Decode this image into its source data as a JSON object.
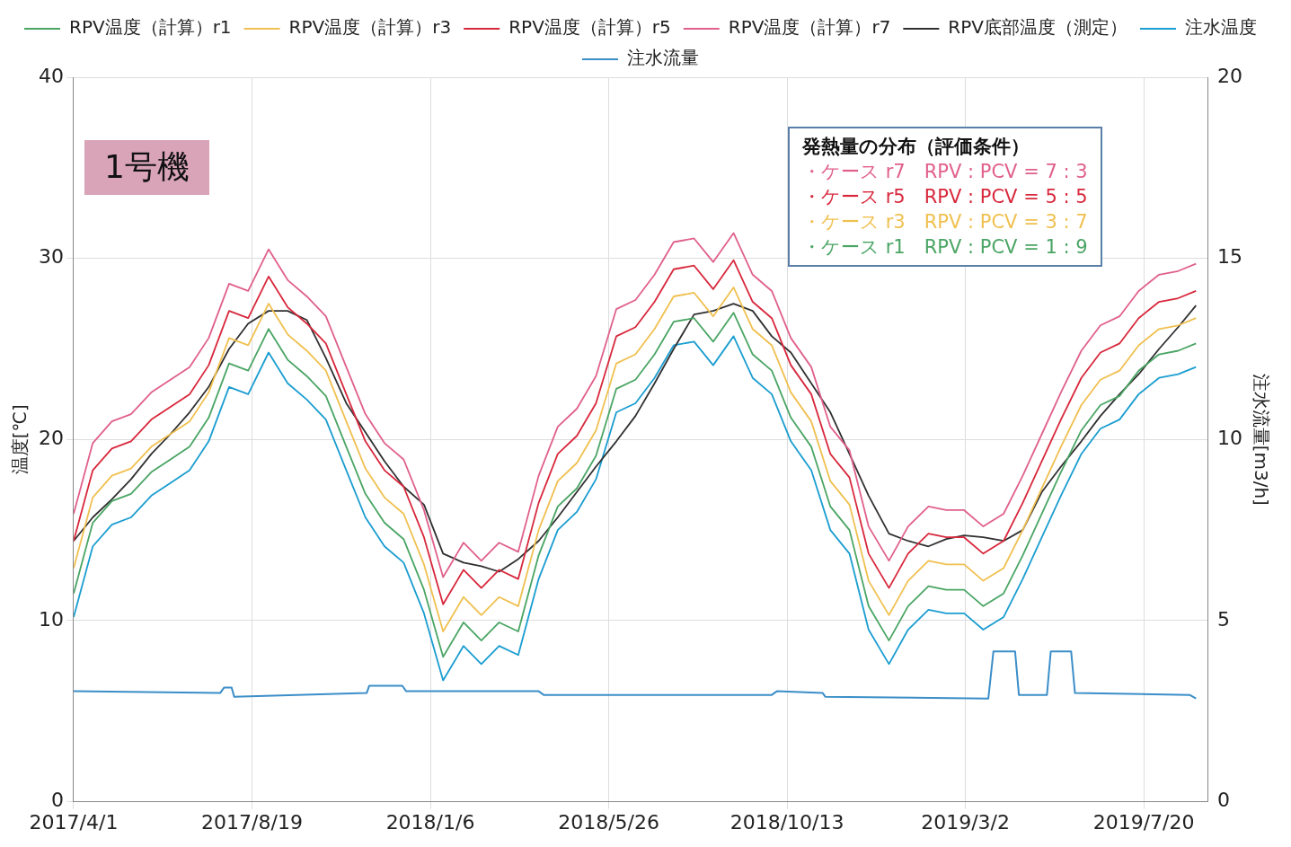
{
  "chart_data": {
    "type": "line",
    "ylabel": "温度[℃]",
    "y2label": "注水流量[m3/h]",
    "annotations": [
      "1号機",
      "発熱量の分布（評価条件）",
      "・ケース r7　RPV : PCV = 7 : 3",
      "・ケース r5　RPV : PCV = 5 : 5",
      "・ケース r3　RPV : PCV = 3 : 7",
      "・ケース r1　RPV : PCV = 1 : 9"
    ],
    "x": [
      "2017-04-01",
      "2017-04-16",
      "2017-05-01",
      "2017-05-16",
      "2017-06-01",
      "2017-06-16",
      "2017-07-01",
      "2017-07-16",
      "2017-08-01",
      "2017-08-16",
      "2017-09-01",
      "2017-09-16",
      "2017-10-01",
      "2017-10-16",
      "2017-11-01",
      "2017-11-16",
      "2017-12-01",
      "2017-12-16",
      "2018-01-01",
      "2018-01-16",
      "2018-02-01",
      "2018-02-15",
      "2018-03-01",
      "2018-03-16",
      "2018-04-01",
      "2018-04-16",
      "2018-05-01",
      "2018-05-16",
      "2018-06-01",
      "2018-06-16",
      "2018-07-01",
      "2018-07-16",
      "2018-08-01",
      "2018-08-16",
      "2018-09-01",
      "2018-09-16",
      "2018-10-01",
      "2018-10-16",
      "2018-11-01",
      "2018-11-16",
      "2018-12-01",
      "2018-12-16",
      "2019-01-01",
      "2019-01-16",
      "2019-02-01",
      "2019-02-15",
      "2019-03-01",
      "2019-03-16",
      "2019-04-01",
      "2019-04-16",
      "2019-05-01",
      "2019-05-16",
      "2019-06-01",
      "2019-06-16",
      "2019-07-01",
      "2019-07-16",
      "2019-08-01",
      "2019-08-16",
      "2019-08-30"
    ],
    "series": [
      {
        "name": "RPV温度（計算）r1",
        "color": "#4aa564",
        "values": [
          11.5,
          15.4,
          16.6,
          17.0,
          18.2,
          18.9,
          19.6,
          21.2,
          24.2,
          23.8,
          26.1,
          24.4,
          23.5,
          22.4,
          19.6,
          17.0,
          15.4,
          14.5,
          11.7,
          8.0,
          9.9,
          8.9,
          9.9,
          9.4,
          13.6,
          16.3,
          17.3,
          19.1,
          22.8,
          23.3,
          24.7,
          26.5,
          26.7,
          25.4,
          27.0,
          24.7,
          23.8,
          21.2,
          19.6,
          16.3,
          15.0,
          10.8,
          8.9,
          10.8,
          11.9,
          11.7,
          11.7,
          10.8,
          11.5,
          13.6,
          15.9,
          18.2,
          20.5,
          21.9,
          22.4,
          23.8,
          24.7,
          24.9,
          25.3
        ]
      },
      {
        "name": "RPV温度（計算）r3",
        "color": "#f0c050",
        "values": [
          12.9,
          16.8,
          18.0,
          18.4,
          19.6,
          20.3,
          21.0,
          22.6,
          25.6,
          25.2,
          27.5,
          25.8,
          24.9,
          23.8,
          21.0,
          18.4,
          16.8,
          15.9,
          13.1,
          9.4,
          11.3,
          10.3,
          11.3,
          10.8,
          15.0,
          17.7,
          18.7,
          20.5,
          24.2,
          24.7,
          26.1,
          27.9,
          28.1,
          26.8,
          28.4,
          26.1,
          25.2,
          22.6,
          21.0,
          17.7,
          16.4,
          12.2,
          10.3,
          12.2,
          13.3,
          13.1,
          13.1,
          12.2,
          12.9,
          15.0,
          17.3,
          19.6,
          21.9,
          23.3,
          23.8,
          25.2,
          26.1,
          26.3,
          26.7
        ]
      },
      {
        "name": "RPV温度（計算）r5",
        "color": "#d8283c",
        "values": [
          14.4,
          18.3,
          19.5,
          19.9,
          21.1,
          21.8,
          22.5,
          24.1,
          27.1,
          26.7,
          29.0,
          27.3,
          26.4,
          25.3,
          22.5,
          19.9,
          18.3,
          17.4,
          14.6,
          10.9,
          12.8,
          11.8,
          12.8,
          12.3,
          16.5,
          19.2,
          20.2,
          22.0,
          25.7,
          26.2,
          27.6,
          29.4,
          29.6,
          28.3,
          29.9,
          27.6,
          26.7,
          24.1,
          22.5,
          19.2,
          17.9,
          13.7,
          11.8,
          13.7,
          14.8,
          14.6,
          14.6,
          13.7,
          14.4,
          16.5,
          18.8,
          21.1,
          23.4,
          24.8,
          25.3,
          26.7,
          27.6,
          27.8,
          28.2
        ]
      },
      {
        "name": "RPV温度（計算）r7",
        "color": "#e0608a",
        "values": [
          15.9,
          19.8,
          21.0,
          21.4,
          22.6,
          23.3,
          24.0,
          25.6,
          28.6,
          28.2,
          30.5,
          28.8,
          27.9,
          26.8,
          24.0,
          21.4,
          19.8,
          18.9,
          16.1,
          12.4,
          14.3,
          13.3,
          14.3,
          13.8,
          18.0,
          20.7,
          21.7,
          23.5,
          27.2,
          27.7,
          29.1,
          30.9,
          31.1,
          29.8,
          31.4,
          29.1,
          28.2,
          25.6,
          24.0,
          20.7,
          19.4,
          15.2,
          13.3,
          15.2,
          16.3,
          16.1,
          16.1,
          15.2,
          15.9,
          18.0,
          20.3,
          22.6,
          24.9,
          26.3,
          26.8,
          28.2,
          29.1,
          29.3,
          29.7
        ]
      },
      {
        "name": "RPV底部温度（測定）",
        "color": "#303030",
        "values": [
          14.4,
          15.7,
          16.7,
          17.8,
          19.2,
          20.3,
          21.5,
          22.9,
          25.0,
          26.4,
          27.1,
          27.1,
          26.6,
          24.5,
          22.0,
          20.4,
          18.8,
          17.4,
          16.4,
          13.7,
          13.2,
          13.0,
          12.7,
          13.4,
          14.4,
          15.7,
          17.1,
          18.5,
          19.9,
          21.3,
          23.1,
          25.0,
          26.9,
          27.1,
          27.5,
          27.1,
          25.7,
          24.8,
          23.1,
          21.5,
          19.2,
          16.9,
          14.8,
          14.4,
          14.1,
          14.5,
          14.7,
          14.6,
          14.4,
          15.0,
          17.1,
          18.5,
          19.9,
          21.3,
          22.5,
          23.6,
          25.0,
          26.2,
          27.4
        ]
      },
      {
        "name": "注水温度",
        "color": "#1a9dd0",
        "values": [
          10.2,
          14.1,
          15.3,
          15.7,
          16.9,
          17.6,
          18.3,
          19.9,
          22.9,
          22.5,
          24.8,
          23.1,
          22.2,
          21.1,
          18.3,
          15.7,
          14.1,
          13.2,
          10.4,
          6.7,
          8.6,
          7.6,
          8.6,
          8.1,
          12.3,
          15.0,
          16.0,
          17.8,
          21.5,
          22.0,
          23.4,
          25.2,
          25.4,
          24.1,
          25.7,
          23.4,
          22.5,
          19.9,
          18.3,
          15.0,
          13.7,
          9.5,
          7.6,
          9.5,
          10.6,
          10.4,
          10.4,
          9.5,
          10.2,
          12.3,
          14.6,
          16.9,
          19.2,
          20.6,
          21.1,
          22.5,
          23.4,
          23.6,
          24.0
        ]
      },
      {
        "name": "注水流量",
        "color": "#3b8ec8",
        "axis": "y2",
        "x": [
          "2017-04-01",
          "2017-07-25",
          "2017-07-28",
          "2017-08-03",
          "2017-08-05",
          "2017-11-17",
          "2017-11-19",
          "2017-12-15",
          "2017-12-18",
          "2018-04-01",
          "2018-04-05",
          "2018-10-01",
          "2018-10-05",
          "2018-11-10",
          "2018-11-12",
          "2019-03-20",
          "2019-03-24",
          "2019-04-10",
          "2019-04-13",
          "2019-05-05",
          "2019-05-08",
          "2019-05-24",
          "2019-05-27",
          "2019-08-25",
          "2019-08-30"
        ],
        "values": [
          3.05,
          3.0,
          3.15,
          3.15,
          2.9,
          3.0,
          3.2,
          3.2,
          3.05,
          3.05,
          2.95,
          2.95,
          3.05,
          3.0,
          2.9,
          2.85,
          4.15,
          4.15,
          2.95,
          2.95,
          4.15,
          4.15,
          3.0,
          2.95,
          2.85
        ]
      }
    ],
    "xlim": [
      "2017-04-01",
      "2019-09-08"
    ],
    "xticks": [
      {
        "value": "2017-04-01",
        "label": "2017/4/1"
      },
      {
        "value": "2017-08-19",
        "label": "2017/8/19"
      },
      {
        "value": "2018-01-06",
        "label": "2018/1/6"
      },
      {
        "value": "2018-05-26",
        "label": "2018/5/26"
      },
      {
        "value": "2018-10-13",
        "label": "2018/10/13"
      },
      {
        "value": "2019-03-02",
        "label": "2019/3/2"
      },
      {
        "value": "2019-07-20",
        "label": "2019/7/20"
      }
    ],
    "ylim": [
      0,
      40
    ],
    "yticks": [
      0,
      10,
      20,
      30,
      40
    ],
    "y2lim": [
      0,
      20
    ],
    "y2ticks": [
      0,
      5,
      10,
      15,
      20
    ],
    "grid": true,
    "legend": "top",
    "marker": "none",
    "line_style": "solid"
  }
}
